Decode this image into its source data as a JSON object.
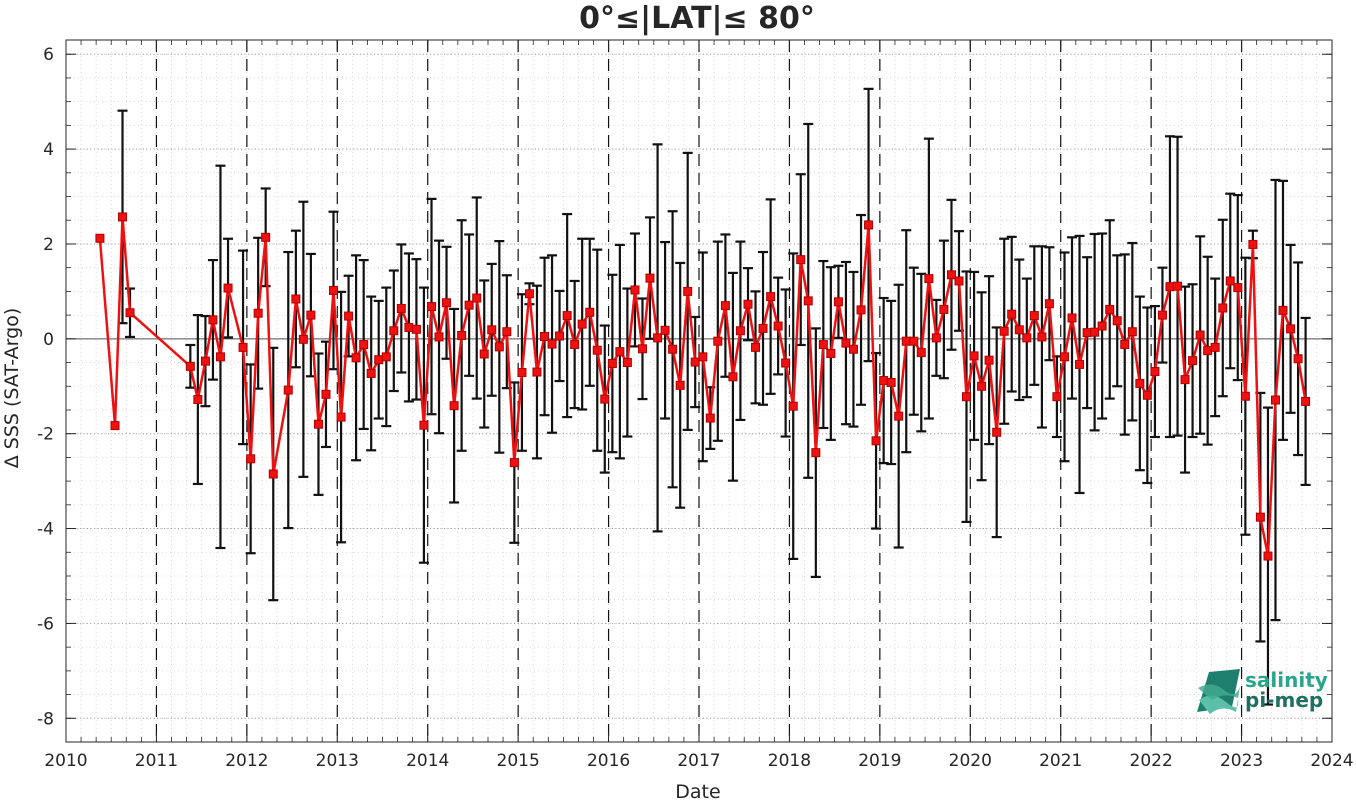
{
  "chart_data": {
    "type": "line",
    "title": "0°≤|LAT|≤ 80°",
    "xlabel": "Date",
    "ylabel": "Δ SSS (SAT-Argo)",
    "xlim": [
      2010,
      2024
    ],
    "ylim": [
      -8.5,
      6.3
    ],
    "x_ticks": [
      "2010",
      "2011",
      "2012",
      "2013",
      "2014",
      "2015",
      "2016",
      "2017",
      "2018",
      "2019",
      "2020",
      "2021",
      "2022",
      "2023",
      "2024"
    ],
    "y_ticks": [
      "-8",
      "-6",
      "-4",
      "-2",
      "0",
      "2",
      "4",
      "6"
    ],
    "grid": true,
    "year_markers": "dashed vertical lines at each year",
    "colors": {
      "series": "#ee1111",
      "errorbar": "#111111",
      "zero_line": "#555555"
    },
    "series": [
      {
        "x": [
          2010.375,
          2010.542,
          2010.625,
          2010.708,
          2011.375,
          2011.458,
          2011.542,
          2011.625,
          2011.708,
          2011.792,
          2011.958,
          2012.042,
          2012.125,
          2012.208,
          2012.292,
          2012.458,
          2012.542,
          2012.625,
          2012.708,
          2012.792,
          2012.875,
          2012.958,
          2013.042,
          2013.125,
          2013.208,
          2013.292,
          2013.375,
          2013.458,
          2013.542,
          2013.625,
          2013.708,
          2013.792,
          2013.875,
          2013.958,
          2014.042,
          2014.125,
          2014.208,
          2014.292,
          2014.375,
          2014.458,
          2014.542,
          2014.625,
          2014.708,
          2014.792,
          2014.875,
          2014.958,
          2015.042,
          2015.125,
          2015.208,
          2015.292,
          2015.375,
          2015.458,
          2015.542,
          2015.625,
          2015.708,
          2015.792,
          2015.875,
          2015.958,
          2016.042,
          2016.125,
          2016.208,
          2016.292,
          2016.375,
          2016.458,
          2016.542,
          2016.625,
          2016.708,
          2016.792,
          2016.875,
          2016.958,
          2017.042,
          2017.125,
          2017.208,
          2017.292,
          2017.375,
          2017.458,
          2017.542,
          2017.625,
          2017.708,
          2017.792,
          2017.875,
          2017.958,
          2018.042,
          2018.125,
          2018.208,
          2018.292,
          2018.375,
          2018.458,
          2018.542,
          2018.625,
          2018.708,
          2018.792,
          2018.875,
          2018.958,
          2019.042,
          2019.125,
          2019.208,
          2019.292,
          2019.375,
          2019.458,
          2019.542,
          2019.625,
          2019.708,
          2019.792,
          2019.875,
          2019.958,
          2020.042,
          2020.125,
          2020.208,
          2020.292,
          2020.375,
          2020.458,
          2020.542,
          2020.625,
          2020.708,
          2020.792,
          2020.875,
          2020.958,
          2021.042,
          2021.125,
          2021.208,
          2021.292,
          2021.375,
          2021.458,
          2021.542,
          2021.625,
          2021.708,
          2021.792,
          2021.875,
          2021.958,
          2022.042,
          2022.125,
          2022.208,
          2022.292,
          2022.375,
          2022.458,
          2022.542,
          2022.625,
          2022.708,
          2022.792,
          2022.875,
          2022.958,
          2023.042,
          2023.125,
          2023.208,
          2023.292,
          2023.375,
          2023.458,
          2023.542,
          2023.625,
          2023.708
        ],
        "y": [
          2.12,
          -1.83,
          2.57,
          0.55,
          -0.58,
          -1.28,
          -0.47,
          0.4,
          -0.38,
          1.07,
          -0.18,
          -2.53,
          0.54,
          2.14,
          -2.85,
          -1.08,
          0.84,
          -0.01,
          0.5,
          -1.8,
          -1.17,
          1.02,
          -1.65,
          0.48,
          -0.4,
          -0.12,
          -0.73,
          -0.44,
          -0.38,
          0.17,
          0.64,
          0.24,
          0.2,
          -1.82,
          0.68,
          0.04,
          0.76,
          -1.41,
          0.07,
          0.71,
          0.86,
          -0.32,
          0.19,
          -0.17,
          0.15,
          -2.61,
          -0.71,
          0.95,
          -0.7,
          0.05,
          -0.11,
          0.06,
          0.49,
          -0.12,
          0.31,
          0.56,
          -0.24,
          -1.27,
          -0.52,
          -0.27,
          -0.5,
          1.03,
          -0.21,
          1.28,
          0.02,
          0.18,
          -0.22,
          -0.98,
          1.0,
          -0.49,
          -0.38,
          -1.67,
          -0.05,
          0.7,
          -0.8,
          0.17,
          0.73,
          -0.18,
          0.22,
          0.89,
          0.27,
          -0.51,
          -1.42,
          1.67,
          0.8,
          -2.4,
          -0.12,
          -0.31,
          0.78,
          -0.09,
          -0.22,
          0.61,
          2.4,
          -2.15,
          -0.88,
          -0.92,
          -1.63,
          -0.05,
          -0.05,
          -0.29,
          1.27,
          0.02,
          0.62,
          1.35,
          1.22,
          -1.22,
          -0.36,
          -1.0,
          -0.45,
          -1.97,
          0.16,
          0.52,
          0.19,
          0.02,
          0.49,
          0.04,
          0.74,
          -1.22,
          -0.38,
          0.44,
          -0.54,
          0.13,
          0.14,
          0.27,
          0.62,
          0.38,
          -0.12,
          0.15,
          -0.94,
          -1.19,
          -0.69,
          0.5,
          1.1,
          1.11,
          -0.86,
          -0.46,
          0.08,
          -0.25,
          -0.18,
          0.65,
          1.22,
          1.08,
          -1.21,
          1.99,
          -3.76,
          -4.58,
          -1.29,
          0.6,
          0.21,
          -0.42,
          -1.32
        ],
        "err": [
          0.0,
          0.0,
          2.24,
          0.51,
          0.45,
          1.78,
          0.95,
          1.26,
          4.03,
          1.04,
          2.04,
          1.99,
          1.59,
          1.03,
          2.66,
          2.91,
          1.44,
          2.9,
          1.29,
          1.49,
          1.11,
          1.66,
          2.64,
          0.85,
          2.16,
          1.78,
          1.62,
          1.24,
          1.46,
          1.27,
          1.35,
          1.56,
          1.48,
          2.9,
          2.27,
          2.03,
          1.18,
          2.04,
          2.43,
          1.49,
          2.12,
          1.55,
          1.39,
          2.23,
          1.19,
          1.69,
          1.65,
          0.22,
          1.82,
          1.66,
          1.87,
          0.95,
          2.14,
          1.34,
          1.8,
          1.55,
          2.12,
          1.55,
          1.87,
          2.25,
          1.56,
          1.19,
          1.06,
          1.28,
          4.08,
          1.86,
          2.91,
          2.58,
          2.92,
          0.95,
          2.2,
          0.65,
          2.1,
          1.5,
          2.19,
          1.88,
          0.76,
          1.18,
          1.61,
          2.05,
          1.02,
          1.55,
          3.22,
          1.8,
          3.73,
          2.62,
          1.76,
          1.82,
          0.76,
          1.71,
          1.63,
          2.0,
          2.87,
          1.85,
          1.74,
          1.72,
          2.77,
          2.34,
          1.55,
          1.66,
          2.95,
          0.8,
          1.45,
          1.58,
          1.05,
          2.64,
          1.77,
          1.98,
          1.77,
          2.21,
          1.95,
          1.63,
          1.48,
          1.25,
          1.46,
          1.91,
          1.19,
          0.85,
          2.2,
          1.7,
          2.71,
          1.59,
          2.07,
          1.95,
          1.88,
          1.38,
          1.9,
          1.87,
          1.83,
          1.85,
          1.38,
          1.0,
          3.17,
          3.15,
          1.96,
          1.61,
          2.08,
          1.98,
          1.45,
          1.86,
          1.84,
          1.95,
          2.92,
          0.29,
          2.62,
          3.13,
          4.64,
          2.73,
          1.77,
          2.03,
          1.76
        ]
      }
    ]
  },
  "logo": {
    "line1": "salinity",
    "line2": "pi-mep"
  }
}
